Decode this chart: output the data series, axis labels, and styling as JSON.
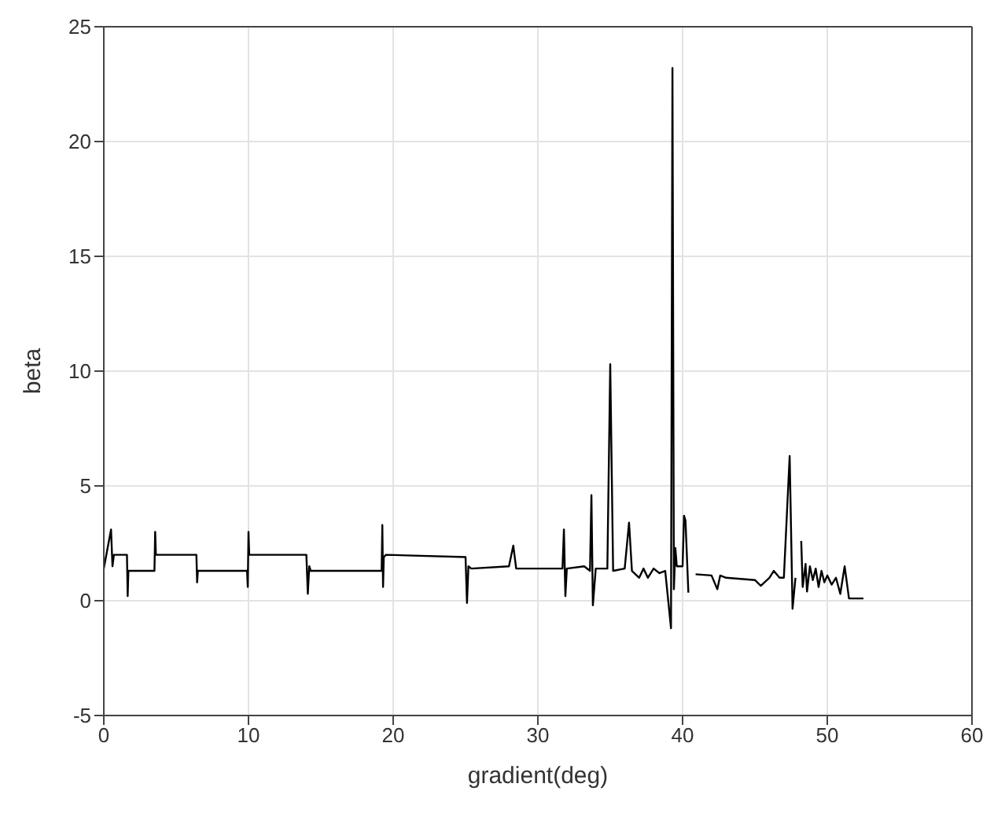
{
  "chart_data": {
    "type": "line",
    "xlabel": "gradient(deg)",
    "ylabel": "beta",
    "x": [
      0,
      0.5,
      0.6,
      0.7,
      1.6,
      1.65,
      1.7,
      3.5,
      3.55,
      3.6,
      6.4,
      6.45,
      6.5,
      9.9,
      9.95,
      10.0,
      10.05,
      14.0,
      14.1,
      14.2,
      14.3,
      19.2,
      19.25,
      19.3,
      19.35,
      19.5,
      25.0,
      25.1,
      25.2,
      25.4,
      28.0,
      28.3,
      28.5,
      31.7,
      31.8,
      31.9,
      32.0,
      33.2,
      33.6,
      33.7,
      33.8,
      34.0,
      34.8,
      35.0,
      35.2,
      36.0,
      36.3,
      36.5,
      37.0,
      37.3,
      37.6,
      38.0,
      38.4,
      38.8,
      39.2,
      39.3,
      39.4,
      39.5,
      39.6,
      40.0,
      40.1,
      40.2,
      40.4,
      40.6,
      40.9,
      42.0,
      42.4,
      42.6,
      43.0,
      45.0,
      45.4,
      46.0,
      46.3,
      46.7,
      47.0,
      47.4,
      47.6,
      47.8,
      48.0,
      48.2,
      48.3,
      48.5,
      48.6,
      48.8,
      49.0,
      49.2,
      49.4,
      49.6,
      49.8,
      50.0,
      50.3,
      50.6,
      50.9,
      51.2,
      51.5,
      51.6,
      51.8,
      52.5
    ],
    "values": [
      1.4,
      3.1,
      1.5,
      2.0,
      2.0,
      0.2,
      1.3,
      1.3,
      3.0,
      2.0,
      2.0,
      0.8,
      1.3,
      1.3,
      0.6,
      3.0,
      2.0,
      2.0,
      0.3,
      1.5,
      1.3,
      1.3,
      3.3,
      0.6,
      1.9,
      2.0,
      1.9,
      -0.1,
      1.5,
      1.4,
      1.5,
      2.4,
      1.4,
      1.4,
      3.1,
      0.2,
      1.4,
      1.5,
      1.3,
      4.6,
      -0.2,
      1.4,
      1.4,
      10.3,
      1.3,
      1.4,
      3.4,
      1.3,
      1.0,
      1.4,
      1.0,
      1.4,
      1.2,
      1.3,
      -1.2,
      23.2,
      0.5,
      2.3,
      1.5,
      1.5,
      3.7,
      3.5,
      0.35,
      null,
      1.15,
      1.1,
      0.5,
      1.1,
      1.0,
      0.9,
      0.65,
      1.0,
      1.3,
      1.0,
      1.0,
      6.3,
      -0.35,
      1.0,
      null,
      2.6,
      0.6,
      1.6,
      0.4,
      1.5,
      0.9,
      1.4,
      0.6,
      1.3,
      0.8,
      1.1,
      0.7,
      1.0,
      0.3,
      1.5,
      0.1,
      0.1,
      0.1,
      0.1
    ],
    "color": "#000000",
    "xlim": [
      0,
      60
    ],
    "xticks": [
      0,
      10,
      20,
      30,
      40,
      50,
      60
    ],
    "ylim": [
      -5,
      25
    ],
    "yticks": [
      -5,
      0,
      5,
      10,
      15,
      20,
      25
    ],
    "grid": true
  }
}
